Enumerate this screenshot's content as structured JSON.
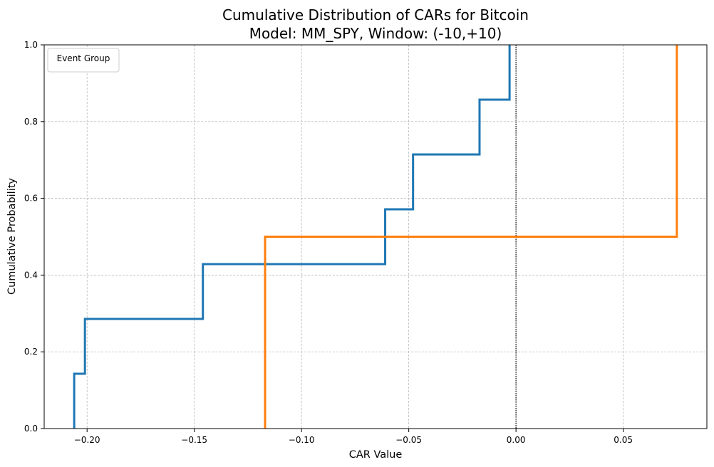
{
  "chart_data": {
    "type": "line",
    "title_line1": "Cumulative Distribution of CARs for Bitcoin",
    "title_line2": "Model: MM_SPY, Window: (-10,+10)",
    "xlabel": "CAR Value",
    "ylabel": "Cumulative Probability",
    "xlim": [
      -0.22,
      0.089
    ],
    "ylim": [
      0.0,
      1.0
    ],
    "xticks": [
      -0.2,
      -0.15,
      -0.1,
      -0.05,
      0.0,
      0.05
    ],
    "xtick_labels": [
      "−0.20",
      "−0.15",
      "−0.10",
      "−0.05",
      "0.00",
      "0.05"
    ],
    "yticks": [
      0.0,
      0.2,
      0.4,
      0.6,
      0.8,
      1.0
    ],
    "ytick_labels": [
      "0.0",
      "0.2",
      "0.4",
      "0.6",
      "0.8",
      "1.0"
    ],
    "grid": true,
    "reference_line_x": 0.0,
    "legend": {
      "title": "Event Group",
      "placement": "top-left"
    },
    "series": [
      {
        "color": "#1f77b4",
        "x": [
          -0.206,
          -0.201,
          -0.146,
          -0.061,
          -0.048,
          -0.017,
          -0.003
        ],
        "y": [
          0.1429,
          0.2857,
          0.4286,
          0.5714,
          0.7143,
          0.8571,
          1.0
        ]
      },
      {
        "color": "#ff7f0e",
        "x": [
          -0.117,
          0.075
        ],
        "y": [
          0.5,
          1.0
        ]
      }
    ]
  }
}
